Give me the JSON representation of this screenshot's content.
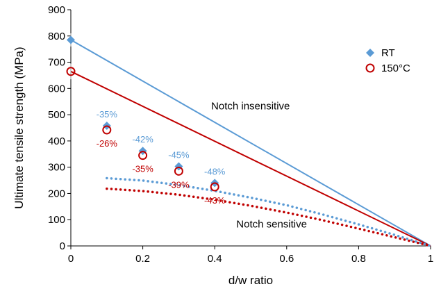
{
  "chart_data": {
    "type": "scatter",
    "xlabel": "d/w ratio",
    "ylabel": "Ultimate tensile strength (MPa)",
    "xlim": [
      0,
      1
    ],
    "ylim": [
      0,
      900
    ],
    "x_ticks": [
      "0",
      "0.2",
      "0.4",
      "0.6",
      "0.8",
      "1"
    ],
    "y_ticks": [
      "0",
      "100",
      "200",
      "300",
      "400",
      "500",
      "600",
      "700",
      "800",
      "900"
    ],
    "grid": false,
    "legend_position": "top-right",
    "colors": {
      "rt": "#5b9bd5",
      "hot": "#c00000"
    },
    "series": [
      {
        "name": "RT",
        "marker": "diamond",
        "x": [
          0,
          0.1,
          0.2,
          0.3,
          0.4
        ],
        "y": [
          785,
          458,
          362,
          303,
          240
        ],
        "labels": [
          "",
          "-35%",
          "-42%",
          "-45%",
          "-48%"
        ]
      },
      {
        "name": "150°C",
        "marker": "open-circle",
        "x": [
          0,
          0.1,
          0.2,
          0.3,
          0.4
        ],
        "y": [
          665,
          442,
          345,
          285,
          225
        ],
        "labels": [
          "",
          "-26%",
          "-35%",
          "-39%",
          "-43%"
        ]
      }
    ],
    "lines": [
      {
        "series": "RT",
        "style": "solid",
        "x": [
          0,
          1
        ],
        "y": [
          785,
          0
        ]
      },
      {
        "series": "150°C",
        "style": "solid",
        "x": [
          0,
          1
        ],
        "y": [
          665,
          0
        ]
      },
      {
        "series": "RT",
        "style": "dotted",
        "x": [
          0.1,
          0.2,
          0.3,
          0.4,
          0.5,
          0.6,
          0.7,
          0.8,
          0.9,
          1.0
        ],
        "y": [
          258,
          249,
          232,
          210,
          184,
          155,
          120,
          82,
          42,
          0
        ]
      },
      {
        "series": "150°C",
        "style": "dotted",
        "x": [
          0.1,
          0.2,
          0.3,
          0.4,
          0.5,
          0.6,
          0.7,
          0.8,
          0.9,
          1.0
        ],
        "y": [
          218,
          209,
          195,
          176,
          153,
          127,
          98,
          66,
          33,
          0
        ]
      }
    ],
    "annotations": [
      {
        "text": "Notch insensitive",
        "x": 0.39,
        "y": 520
      },
      {
        "text": "Notch sensitive",
        "x": 0.46,
        "y": 70
      }
    ]
  }
}
